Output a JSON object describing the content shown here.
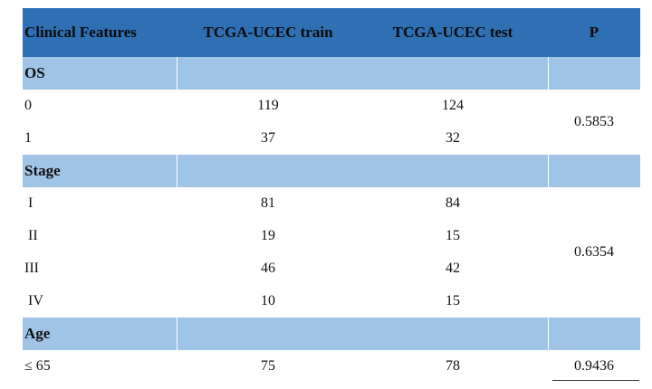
{
  "table": {
    "headers": [
      "Clinical Features",
      "TCGA-UCEC train",
      "TCGA-UCEC test",
      "P"
    ],
    "sections": [
      {
        "label": "OS",
        "rows": [
          {
            "feature": "0",
            "train": "119",
            "test": "124"
          },
          {
            "feature": "1",
            "train": "37",
            "test": "32"
          }
        ],
        "p": "0.5853"
      },
      {
        "label": "Stage",
        "rows": [
          {
            "feature": "I",
            "train": "81",
            "test": "84"
          },
          {
            "feature": "II",
            "train": "19",
            "test": "15"
          },
          {
            "feature": "III",
            "train": "46",
            "test": "42"
          },
          {
            "feature": "IV",
            "train": "10",
            "test": "15"
          }
        ],
        "p": "0.6354"
      },
      {
        "label": "Age",
        "rows": [
          {
            "feature": "≤ 65",
            "train": "75",
            "test": "78"
          }
        ],
        "p": "0.9436"
      }
    ]
  },
  "colors": {
    "header_bg": "#2f6fb4",
    "section_bg": "#9fc4e6"
  }
}
